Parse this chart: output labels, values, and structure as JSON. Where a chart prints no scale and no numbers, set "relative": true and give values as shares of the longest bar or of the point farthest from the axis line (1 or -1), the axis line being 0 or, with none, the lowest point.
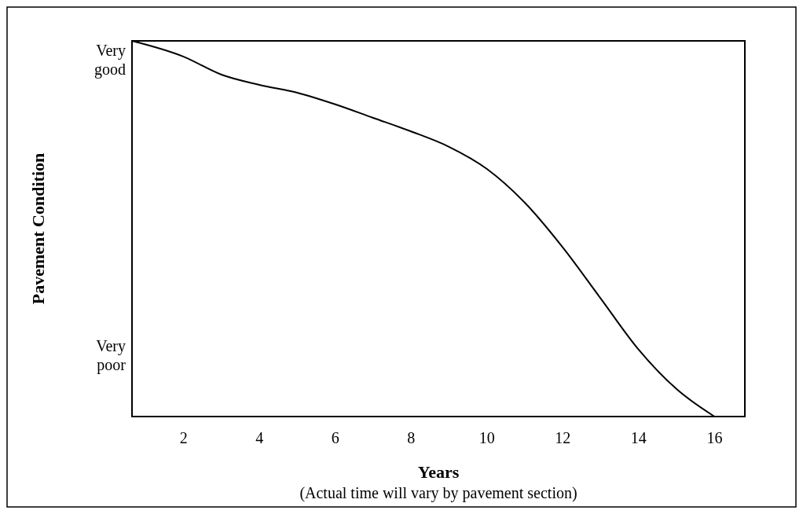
{
  "chart_data": {
    "type": "line",
    "xlabel": "Years",
    "ylabel": "Pavement Condition",
    "relative": true,
    "annotations": [
      "Very good",
      "Very poor",
      "(Actual time will vary by pavement section)"
    ],
    "x": [
      0.64,
      2,
      3,
      4,
      5,
      6,
      7,
      8,
      9,
      10,
      11,
      12,
      13,
      14,
      15,
      16
    ],
    "series": [
      {
        "color": "#000000",
        "values": [
          1,
          0.958,
          0.91,
          0.883,
          0.862,
          0.831,
          0.795,
          0.759,
          0.718,
          0.659,
          0.569,
          0.45,
          0.314,
          0.178,
          0.073,
          0
        ]
      }
    ],
    "xlim": [
      0.64,
      16.8
    ],
    "xticks": [
      2,
      4,
      6,
      8,
      10,
      12,
      14,
      16
    ],
    "grid": false,
    "marker": "none",
    "line_style": "solid"
  }
}
